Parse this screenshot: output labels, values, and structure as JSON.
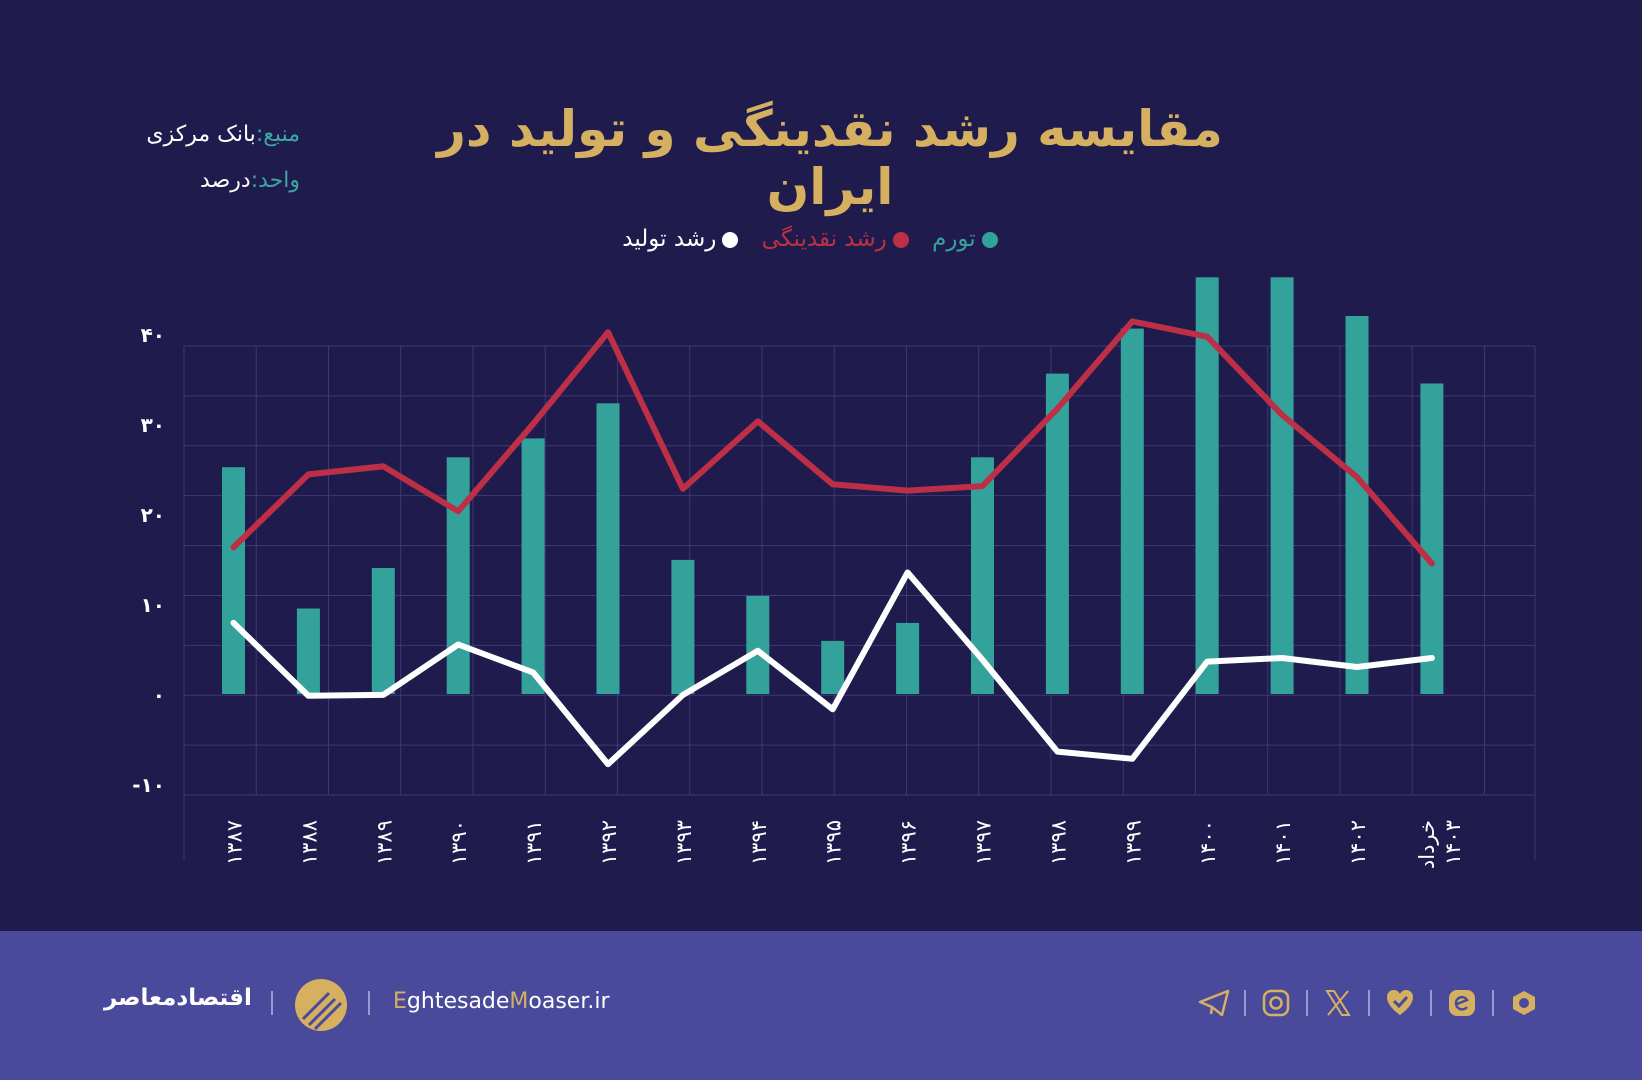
{
  "header": {
    "title": "مقایسه رشد نقدینگی و تولید در ایران",
    "source_label": "منبع:",
    "source_value": "بانک مرکزی",
    "unit_label": "واحد:",
    "unit_value": "درصد"
  },
  "colors": {
    "background": "#1f1b4d",
    "footer": "#4a4a9c",
    "inflation": "#33a29b",
    "liquidity": "#bd2f46",
    "production": "#ffffff",
    "title": "#d6b061",
    "grid": "#3e3a72"
  },
  "chart_data": {
    "type": "bar+line",
    "title": "مقایسه رشد نقدینگی و تولید در ایران",
    "unit": "درصد",
    "categories": [
      "۱۳۸۷",
      "۱۳۸۸",
      "۱۳۸۹",
      "۱۳۹۰",
      "۱۳۹۱",
      "۱۳۹۲",
      "۱۳۹۳",
      "۱۳۹۴",
      "۱۳۹۵",
      "۱۳۹۶",
      "۱۳۹۷",
      "۱۳۹۸",
      "۱۳۹۹",
      "۱۴۰۰",
      "۱۴۰۱",
      "۱۴۰۲",
      "خرداد ۱۴۰۳"
    ],
    "series": [
      {
        "name": "تورم",
        "type": "bar",
        "color": "#33a29b",
        "values": [
          25.2,
          9.5,
          14.0,
          26.3,
          28.4,
          32.3,
          14.9,
          10.9,
          5.9,
          7.9,
          26.3,
          35.6,
          40.6,
          46.3,
          46.3,
          42.0,
          34.5
        ]
      },
      {
        "name": "رشد نقدینگی",
        "type": "line",
        "color": "#bd2f46",
        "values": [
          16.3,
          24.4,
          25.3,
          20.3,
          30.0,
          40.2,
          22.8,
          30.3,
          23.3,
          22.6,
          23.1,
          31.7,
          41.4,
          39.7,
          31.0,
          24.1,
          14.5
        ]
      },
      {
        "name": "رشد تولید",
        "type": "line",
        "color": "#ffffff",
        "values": [
          7.9,
          -0.2,
          -0.1,
          5.5,
          2.4,
          -7.8,
          -0.1,
          4.8,
          -1.7,
          13.5,
          3.8,
          -6.4,
          -7.2,
          3.6,
          4.0,
          3.0,
          4.0
        ]
      }
    ],
    "y_ticks": [
      {
        "value": 40,
        "label": "۴۰"
      },
      {
        "value": 30,
        "label": "۳۰"
      },
      {
        "value": 20,
        "label": "۲۰"
      },
      {
        "value": 10,
        "label": "۱۰"
      },
      {
        "value": 0,
        "label": "۰"
      },
      {
        "value": -10,
        "label": "-۱۰"
      }
    ],
    "ylim": [
      -10,
      47
    ],
    "grid": true,
    "legend_position": "top-center"
  },
  "footer": {
    "brand_name": "اقتصادمعاصر",
    "url_e": "E",
    "url_mid": "ghtesade",
    "url_m": "M",
    "url_end": "oaser.ir",
    "social_icons": [
      "telegram-icon",
      "instagram-icon",
      "x-icon",
      "virasty-icon",
      "eitaa-icon",
      "bale-icon"
    ]
  }
}
